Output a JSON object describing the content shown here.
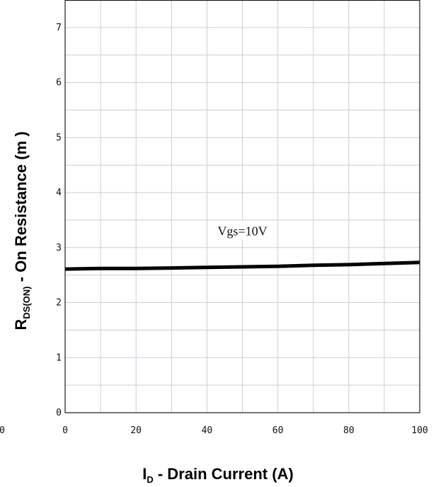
{
  "chart_data": {
    "type": "line",
    "title": "",
    "xlabel": {
      "main": "I",
      "sub": "D",
      "rest": " - Drain Current (A)"
    },
    "ylabel": {
      "main": "R",
      "sub": "DS(ON)",
      "rest": " - On Resistance (m   )"
    },
    "xlim": [
      0,
      100
    ],
    "ylim": [
      0,
      7.5
    ],
    "x_ticks": [
      "0",
      "20",
      "40",
      "60",
      "80",
      "100"
    ],
    "x_tick_values": [
      0,
      20,
      40,
      60,
      80,
      100
    ],
    "y_ticks": [
      "0",
      "1",
      "2",
      "3",
      "4",
      "5",
      "6",
      "7"
    ],
    "y_tick_values": [
      0,
      1,
      2,
      3,
      4,
      5,
      6,
      7
    ],
    "stray_x_label": "0",
    "grid": true,
    "series": [
      {
        "x": [
          0,
          10,
          20,
          30,
          40,
          50,
          60,
          70,
          80,
          90,
          100
        ],
        "y": [
          2.61,
          2.62,
          2.62,
          2.63,
          2.64,
          2.65,
          2.66,
          2.68,
          2.69,
          2.71,
          2.73
        ],
        "color": "#000000"
      }
    ],
    "annotations": [
      {
        "text": "Vgs=10V",
        "x": 50,
        "y": 3.3
      }
    ]
  }
}
